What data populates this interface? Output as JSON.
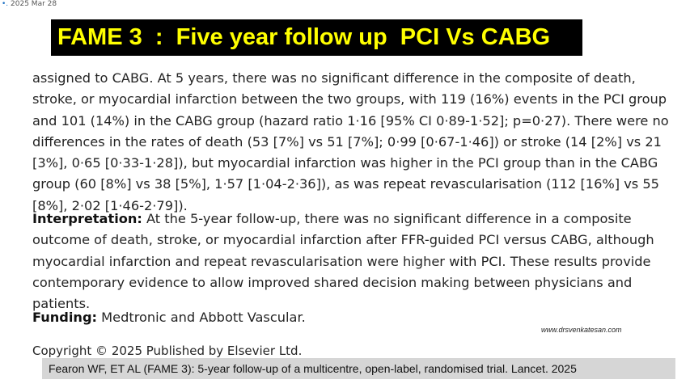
{
  "date": {
    "bullet": "•.",
    "text": "2025 Mar 28"
  },
  "title": "FAME 3  :  Five year follow up  PCI Vs CABG",
  "findings": "assigned to CABG. At 5 years, there was no significant difference in the composite of death, stroke, or myocardial infarction between the two groups, with 119 (16%) events in the PCI group and 101 (14%) in the CABG group (hazard ratio 1·16 [95% CI 0·89-1·52]; p=0·27). There were no differences in the rates of death (53 [7%] vs 51 [7%]; 0·99 [0·67-1·46]) or stroke (14 [2%] vs 21 [3%], 0·65 [0·33-1·28]), but myocardial infarction was higher in the PCI group than in the CABG group (60 [8%] vs 38 [5%], 1·57 [1·04-2·36]), as was repeat revascularisation (112 [16%] vs 55 [8%], 2·02 [1·46-2·79]).",
  "interpretation": {
    "label": "Interpretation:",
    "text": " At the 5-year follow-up, there was no significant difference in a composite outcome of death, stroke, or myocardial infarction after FFR-guided PCI versus CABG, although myocardial infarction and repeat revascularisation were higher with PCI. These results provide contemporary evidence to allow improved shared decision making between physicians and patients."
  },
  "funding": {
    "label": "Funding:",
    "text": " Medtronic and Abbott Vascular."
  },
  "watermark": "www.drsvenkatesan.com",
  "copyright": "Copyright © 2025 Published by Elsevier Ltd.",
  "citation": "Fearon WF, ET AL (FAME 3): 5-year follow-up of a multicentre, open-label, randomised trial. Lancet. 2025"
}
